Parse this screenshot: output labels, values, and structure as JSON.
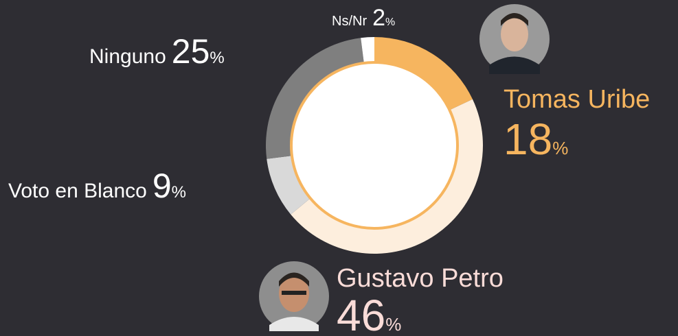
{
  "chart_data": {
    "type": "pie",
    "categories": [
      "Tomas Uribe",
      "Gustavo Petro",
      "Voto en Blanco",
      "Ninguno",
      "Ns/Nr"
    ],
    "values": [
      18,
      46,
      9,
      25,
      2
    ],
    "colors": [
      "#f6b55f",
      "#fdeedd",
      "#d9d9d9",
      "#7f7f7f",
      "#ffffff"
    ],
    "label_colors": [
      "#f6b55f",
      "#fadcd8",
      "#ffffff",
      "#ffffff",
      "#ffffff"
    ],
    "unit": "%"
  }
}
